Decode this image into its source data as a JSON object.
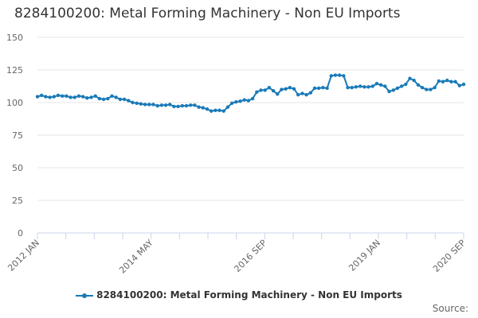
{
  "chart_data": {
    "type": "line",
    "title": "8284100200: Metal Forming Machinery - Non EU Imports",
    "xlabel": "",
    "ylabel": "",
    "ylim": [
      0,
      150
    ],
    "yticks": [
      0,
      25,
      50,
      75,
      100,
      125,
      150
    ],
    "xtick_labels": [
      "2012 JAN",
      "2014 MAY",
      "2016 SEP",
      "2019 JAN",
      "2020 SEP"
    ],
    "grid": true,
    "legend_position": "bottom-center",
    "source_label": "Source:",
    "colors": {
      "series": "#1a7ab8",
      "grid": "#e6e6e6",
      "axis": "#ccd6eb"
    },
    "series": [
      {
        "name": "8284100200: Metal Forming Machinery - Non EU Imports",
        "values": [
          104.5,
          105.5,
          104.5,
          104,
          104.5,
          105.5,
          105,
          105,
          104,
          104,
          105,
          104.5,
          103.5,
          104,
          105,
          103,
          102.5,
          103,
          105,
          104,
          102.5,
          102.5,
          101.5,
          100,
          99.5,
          99,
          98.5,
          98.5,
          98.5,
          97.5,
          98,
          98,
          98.5,
          97,
          97,
          97.5,
          97.5,
          98,
          98,
          96.5,
          96,
          95,
          93.5,
          94,
          94,
          93.5,
          96.5,
          99.5,
          100.5,
          101,
          102,
          101.5,
          103,
          108,
          109.5,
          109.5,
          111.5,
          109,
          106.5,
          110,
          110.5,
          111.5,
          110.5,
          106,
          107,
          106,
          107.5,
          111,
          111,
          111.5,
          111,
          120.5,
          121,
          121,
          120.5,
          111.5,
          111.5,
          112,
          112.5,
          112,
          112,
          112.5,
          114.5,
          113.5,
          112.5,
          108.5,
          109.5,
          111,
          112.5,
          114,
          118.5,
          117,
          113.5,
          111.5,
          110,
          110,
          111.5,
          116.5,
          116,
          117,
          116,
          116,
          113,
          114
        ]
      }
    ]
  }
}
